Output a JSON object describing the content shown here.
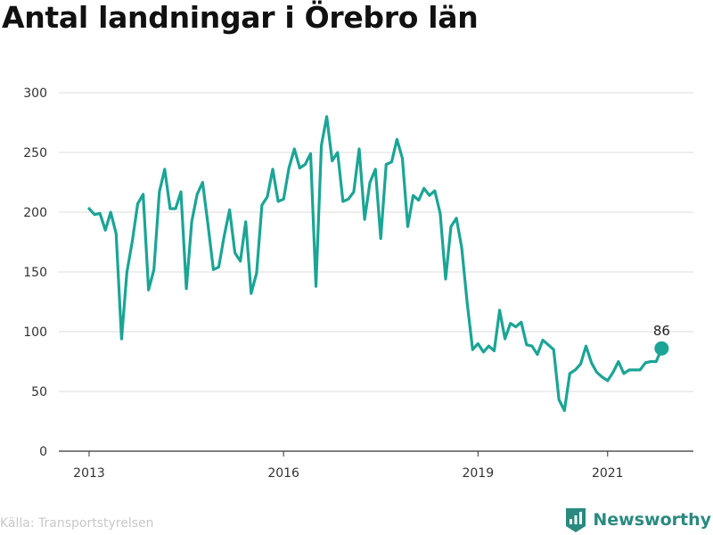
{
  "title": "Antal landningar i Örebro län",
  "source": "Källa: Transportstyrelsen",
  "brand": "Newsworthy",
  "colors": {
    "line": "#1aa596",
    "grid": "#dddddd",
    "axis": "#333333",
    "brand": "#2a8a80"
  },
  "chart_data": {
    "type": "line",
    "title": "Antal landningar i Örebro län",
    "xlabel": "",
    "ylabel": "",
    "ylim": [
      0,
      300
    ],
    "yticks": [
      0,
      50,
      100,
      150,
      200,
      250,
      300
    ],
    "xticks": [
      {
        "label": "2013",
        "date": "2013-01"
      },
      {
        "label": "2016",
        "date": "2016-01"
      },
      {
        "label": "2019",
        "date": "2019-01"
      },
      {
        "label": "2021",
        "date": "2021-01"
      }
    ],
    "grid": true,
    "last_label": "86",
    "series": [
      {
        "x": [
          "2013-01",
          "2013-02",
          "2013-03",
          "2013-04",
          "2013-05",
          "2013-06",
          "2013-07",
          "2013-08",
          "2013-09",
          "2013-10",
          "2013-11",
          "2013-12",
          "2014-01",
          "2014-02",
          "2014-03",
          "2014-04",
          "2014-05",
          "2014-06",
          "2014-07",
          "2014-08",
          "2014-09",
          "2014-10",
          "2014-11",
          "2014-12",
          "2015-01",
          "2015-02",
          "2015-03",
          "2015-04",
          "2015-05",
          "2015-06",
          "2015-07",
          "2015-08",
          "2015-09",
          "2015-10",
          "2015-11",
          "2015-12",
          "2016-01",
          "2016-02",
          "2016-03",
          "2016-04",
          "2016-05",
          "2016-06",
          "2016-07",
          "2016-08",
          "2016-09",
          "2016-10",
          "2016-11",
          "2016-12",
          "2017-01",
          "2017-02",
          "2017-03",
          "2017-04",
          "2017-05",
          "2017-06",
          "2017-07",
          "2017-08",
          "2017-09",
          "2017-10",
          "2017-11",
          "2017-12",
          "2018-01",
          "2018-02",
          "2018-03",
          "2018-04",
          "2018-05",
          "2018-06",
          "2018-07",
          "2018-08",
          "2018-09",
          "2018-10",
          "2018-11",
          "2018-12",
          "2019-01",
          "2019-02",
          "2019-03",
          "2019-04",
          "2019-05",
          "2019-06",
          "2019-07",
          "2019-08",
          "2019-09",
          "2019-10",
          "2019-11",
          "2019-12",
          "2020-01",
          "2020-02",
          "2020-03",
          "2020-04",
          "2020-05",
          "2020-06",
          "2020-07",
          "2020-08",
          "2020-09",
          "2020-10",
          "2020-11",
          "2020-12",
          "2021-01",
          "2021-02",
          "2021-03",
          "2021-04",
          "2021-05",
          "2021-06",
          "2021-07",
          "2021-08",
          "2021-09",
          "2021-10",
          "2021-11"
        ],
        "values": [
          203,
          198,
          199,
          185,
          200,
          182,
          94,
          150,
          176,
          207,
          215,
          135,
          152,
          217,
          236,
          203,
          203,
          217,
          136,
          192,
          215,
          225,
          190,
          152,
          154,
          180,
          202,
          166,
          159,
          192,
          132,
          149,
          206,
          213,
          236,
          209,
          211,
          237,
          253,
          237,
          240,
          249,
          138,
          256,
          280,
          243,
          250,
          209,
          211,
          217,
          253,
          194,
          225,
          236,
          178,
          240,
          242,
          261,
          245,
          188,
          214,
          210,
          220,
          214,
          218,
          199,
          144,
          188,
          195,
          170,
          124,
          85,
          90,
          83,
          88,
          84,
          118,
          94,
          107,
          104,
          108,
          89,
          88,
          81,
          93,
          89,
          85,
          43,
          34,
          65,
          68,
          73,
          88,
          74,
          66,
          62,
          59,
          66,
          75,
          65,
          68,
          68,
          68,
          74,
          75,
          75,
          86
        ]
      }
    ]
  }
}
